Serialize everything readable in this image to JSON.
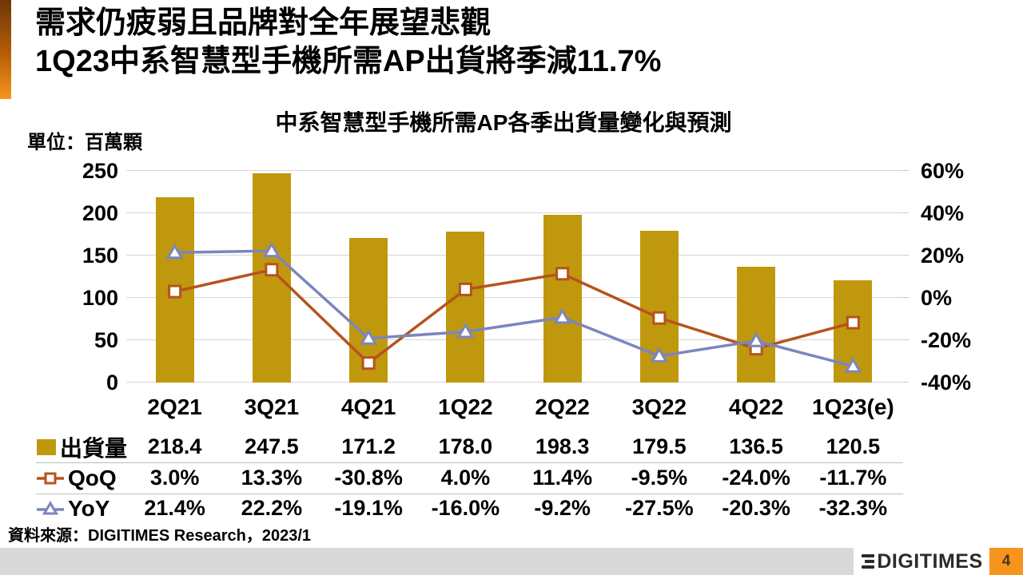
{
  "title": {
    "line1": "需求仍疲弱且品牌對全年展望悲觀",
    "line2": "1Q23中系智慧型手機所需AP出貨將季減11.7%"
  },
  "chart_data": {
    "type": "bar",
    "title": "中系智慧型手機所需AP各季出貨量變化與預測",
    "unit_label": "單位：百萬顆",
    "categories": [
      "2Q21",
      "3Q21",
      "4Q21",
      "1Q22",
      "2Q22",
      "3Q22",
      "4Q22",
      "1Q23(e)"
    ],
    "bar_series": {
      "name": "出貨量",
      "axis": "left",
      "values": [
        218.4,
        247.5,
        171.2,
        178.0,
        198.3,
        179.5,
        136.5,
        120.5
      ]
    },
    "line_series": [
      {
        "name": "QoQ",
        "axis": "right",
        "marker": "square",
        "values": [
          3.0,
          13.3,
          -30.8,
          4.0,
          11.4,
          -9.5,
          -24.0,
          -11.7
        ]
      },
      {
        "name": "YoY",
        "axis": "right",
        "marker": "triangle",
        "values": [
          21.4,
          22.2,
          -19.1,
          -16.0,
          -9.2,
          -27.5,
          -20.3,
          -32.3
        ]
      }
    ],
    "axes": {
      "left": {
        "min": 0,
        "max": 250,
        "tick_values": [
          0,
          50,
          100,
          150,
          200,
          250
        ],
        "tick_labels": [
          "0",
          "50",
          "100",
          "150",
          "200",
          "250"
        ]
      },
      "right": {
        "min": -40,
        "max": 60,
        "tick_values": [
          -40,
          -20,
          0,
          20,
          40,
          60
        ],
        "tick_labels": [
          "-40%",
          "-20%",
          "0%",
          "20%",
          "40%",
          "60%"
        ]
      }
    },
    "grid": true,
    "legend_position": "table-left"
  },
  "table": {
    "rows": [
      {
        "legend": "出貨量",
        "marker": "bar",
        "values": [
          "218.4",
          "247.5",
          "171.2",
          "178.0",
          "198.3",
          "179.5",
          "136.5",
          "120.5"
        ]
      },
      {
        "legend": "QoQ",
        "marker": "square",
        "values": [
          "3.0%",
          "13.3%",
          "-30.8%",
          "4.0%",
          "11.4%",
          "-9.5%",
          "-24.0%",
          "-11.7%"
        ]
      },
      {
        "legend": "YoY",
        "marker": "triangle",
        "values": [
          "21.4%",
          "22.2%",
          "-19.1%",
          "-16.0%",
          "-9.2%",
          "-27.5%",
          "-20.3%",
          "-32.3%"
        ]
      }
    ]
  },
  "source": "資料來源：DIGITIMES Research，2023/1",
  "footer": {
    "logo_text": "DIGITIMES",
    "page_number": "4"
  },
  "colors": {
    "bar": "#c0980e",
    "qoq": "#b5541a",
    "yoy": "#7b86be",
    "grid": "#d6d6d6",
    "accent_orange": "#f7941d",
    "footer_bar": "#d9d9d9"
  }
}
